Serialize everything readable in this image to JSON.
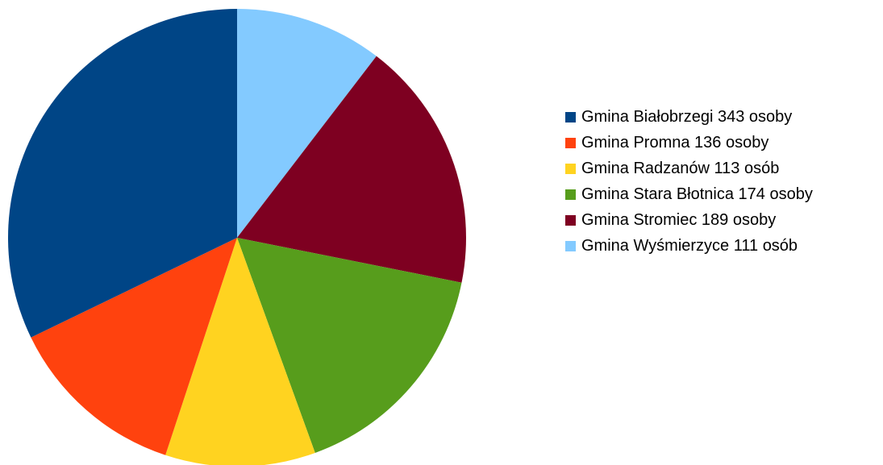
{
  "chart_data": {
    "type": "pie",
    "title": "",
    "legend_position": "right",
    "slices": [
      {
        "label": "Gmina Białobrzegi 343 osoby",
        "value": 343,
        "color": "#004586"
      },
      {
        "label": "Gmina Promna 136 osoby",
        "value": 136,
        "color": "#ff420e"
      },
      {
        "label": "Gmina Radzanów 113 osób",
        "value": 113,
        "color": "#ffd320"
      },
      {
        "label": "Gmina Stara Błotnica 174 osoby",
        "value": 174,
        "color": "#579d1c"
      },
      {
        "label": "Gmina Stromiec 189 osoby",
        "value": 189,
        "color": "#7e0021"
      },
      {
        "label": "Gmina Wyśmierzyce 111 osób",
        "value": 111,
        "color": "#83caff"
      }
    ],
    "draw_order": [
      5,
      4,
      3,
      2,
      1,
      0
    ]
  }
}
